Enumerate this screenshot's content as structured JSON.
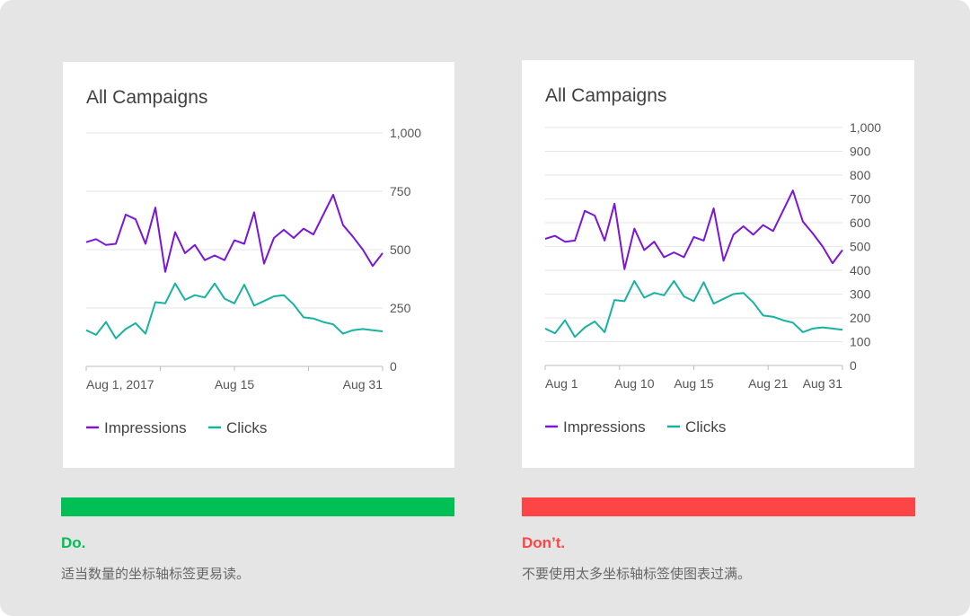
{
  "good": {
    "verdict": "Do.",
    "note": "适当数量的坐标轴标签更易读。",
    "color": "#00bf54",
    "chart": {
      "title": "All Campaigns",
      "y_ticks": [
        "1,000",
        "750",
        "500",
        "250",
        "0"
      ],
      "x_ticks": [
        "Aug 1, 2017",
        "Aug 15",
        "Aug 31"
      ],
      "legend": [
        "Impressions",
        "Clicks"
      ]
    }
  },
  "bad": {
    "verdict": "Don’t.",
    "note": "不要使用太多坐标轴标签使图表过满。",
    "color": "#fe4545",
    "chart": {
      "title": "All Campaigns",
      "y_ticks": [
        "1,000",
        "900",
        "800",
        "700",
        "600",
        "500",
        "400",
        "300",
        "200",
        "100",
        "0"
      ],
      "x_ticks": [
        "Aug 1",
        "Aug 10",
        "Aug 15",
        "Aug 21",
        "Aug 31"
      ],
      "legend": [
        "Impressions",
        "Clicks"
      ]
    }
  },
  "colors": {
    "impressions": "#7b16d8",
    "clicks": "#17b3a0"
  },
  "chart_data": [
    {
      "type": "line",
      "title": "All Campaigns",
      "x": [
        1,
        2,
        3,
        4,
        5,
        6,
        7,
        8,
        9,
        10,
        11,
        12,
        13,
        14,
        15,
        16,
        17,
        18,
        19,
        20,
        21,
        22,
        23,
        24,
        25,
        26,
        27,
        28,
        29,
        30,
        31
      ],
      "x_tick_labels": [
        "Aug 1, 2017",
        "Aug 15",
        "Aug 31"
      ],
      "ylim": [
        0,
        1000
      ],
      "y_ticks": [
        0,
        250,
        500,
        750,
        1000
      ],
      "grid": true,
      "legend_position": "bottom-left",
      "series": [
        {
          "name": "Impressions",
          "color": "#7b16d8",
          "values": [
            532,
            545,
            520,
            525,
            650,
            630,
            525,
            680,
            405,
            575,
            485,
            520,
            455,
            475,
            455,
            540,
            525,
            660,
            440,
            550,
            585,
            550,
            590,
            565,
            650,
            735,
            605,
            555,
            500,
            430,
            485
          ]
        },
        {
          "name": "Clicks",
          "color": "#17b3a0",
          "values": [
            155,
            135,
            190,
            120,
            160,
            185,
            140,
            275,
            270,
            355,
            285,
            305,
            295,
            355,
            290,
            270,
            350,
            260,
            280,
            300,
            305,
            265,
            210,
            205,
            190,
            180,
            140,
            155,
            160,
            155,
            150
          ]
        }
      ]
    },
    {
      "type": "line",
      "title": "All Campaigns",
      "x": [
        1,
        2,
        3,
        4,
        5,
        6,
        7,
        8,
        9,
        10,
        11,
        12,
        13,
        14,
        15,
        16,
        17,
        18,
        19,
        20,
        21,
        22,
        23,
        24,
        25,
        26,
        27,
        28,
        29,
        30,
        31
      ],
      "x_tick_labels": [
        "Aug 1",
        "Aug 10",
        "Aug 15",
        "Aug 21",
        "Aug 31"
      ],
      "ylim": [
        0,
        1000
      ],
      "y_ticks": [
        0,
        100,
        200,
        300,
        400,
        500,
        600,
        700,
        800,
        900,
        1000
      ],
      "grid": true,
      "legend_position": "bottom-left",
      "series": [
        {
          "name": "Impressions",
          "color": "#7b16d8",
          "values": [
            532,
            545,
            520,
            525,
            650,
            630,
            525,
            680,
            405,
            575,
            485,
            520,
            455,
            475,
            455,
            540,
            525,
            660,
            440,
            550,
            585,
            550,
            590,
            565,
            650,
            735,
            605,
            555,
            500,
            430,
            485
          ]
        },
        {
          "name": "Clicks",
          "color": "#17b3a0",
          "values": [
            155,
            135,
            190,
            120,
            160,
            185,
            140,
            275,
            270,
            355,
            285,
            305,
            295,
            355,
            290,
            270,
            350,
            260,
            280,
            300,
            305,
            265,
            210,
            205,
            190,
            180,
            140,
            155,
            160,
            155,
            150
          ]
        }
      ]
    }
  ]
}
